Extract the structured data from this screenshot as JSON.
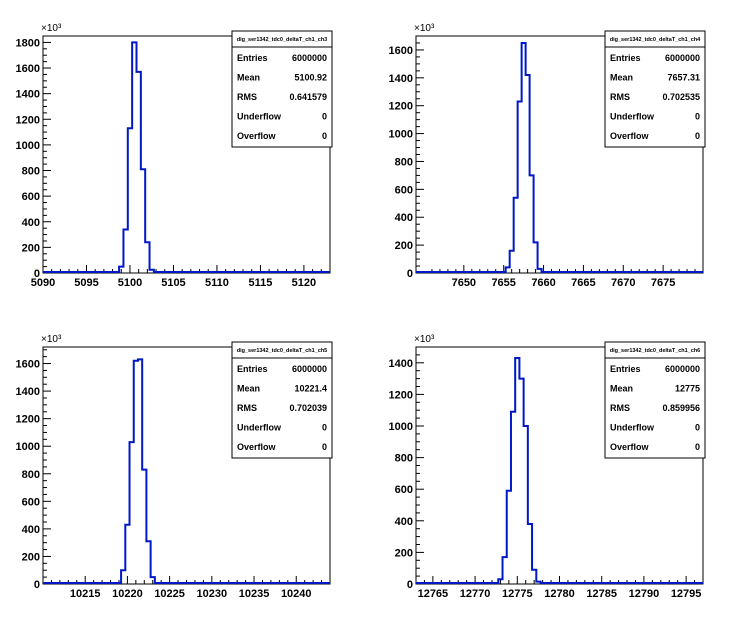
{
  "chart_data": [
    {
      "type": "histogram",
      "title": "dig_ser1342_tdc0_deltaT_ch1_ch3",
      "y_exponent_label": "×10³",
      "xlim": [
        5090,
        5123
      ],
      "ylim": [
        0,
        1850
      ],
      "xticks": [
        "5090",
        "5095",
        "5100",
        "5105",
        "5110",
        "5115",
        "5120"
      ],
      "yticks": [
        "0",
        "200",
        "400",
        "600",
        "800",
        "1000",
        "1200",
        "1400",
        "1600",
        "1800"
      ],
      "bin_width": 0.5,
      "bins": [
        {
          "x": 5098.5,
          "y": 3
        },
        {
          "x": 5099.0,
          "y": 50
        },
        {
          "x": 5099.5,
          "y": 340
        },
        {
          "x": 5100.0,
          "y": 1130
        },
        {
          "x": 5100.5,
          "y": 1800
        },
        {
          "x": 5101.0,
          "y": 1570
        },
        {
          "x": 5101.5,
          "y": 810
        },
        {
          "x": 5102.0,
          "y": 240
        },
        {
          "x": 5102.5,
          "y": 25
        },
        {
          "x": 5103.0,
          "y": 2
        }
      ],
      "stats": {
        "Entries": "6000000",
        "Mean": "5100.92",
        "RMS": "0.641579",
        "Underflow": "0",
        "Overflow": "0"
      }
    },
    {
      "type": "histogram",
      "title": "dig_ser1342_tdc0_deltaT_ch1_ch4",
      "y_exponent_label": "×10³",
      "xlim": [
        7644,
        7680
      ],
      "ylim": [
        0,
        1700
      ],
      "xticks": [
        "7650",
        "7655",
        "7660",
        "7665",
        "7670",
        "7675"
      ],
      "yticks": [
        "0",
        "200",
        "400",
        "600",
        "800",
        "1000",
        "1200",
        "1400",
        "1600"
      ],
      "bin_width": 0.5,
      "bins": [
        {
          "x": 7655.0,
          "y": 4
        },
        {
          "x": 7655.5,
          "y": 40
        },
        {
          "x": 7656.0,
          "y": 160
        },
        {
          "x": 7656.5,
          "y": 540
        },
        {
          "x": 7657.0,
          "y": 1230
        },
        {
          "x": 7657.5,
          "y": 1650
        },
        {
          "x": 7658.0,
          "y": 1420
        },
        {
          "x": 7658.5,
          "y": 700
        },
        {
          "x": 7659.0,
          "y": 220
        },
        {
          "x": 7659.5,
          "y": 30
        },
        {
          "x": 7660.0,
          "y": 3
        }
      ],
      "stats": {
        "Entries": "6000000",
        "Mean": "7657.31",
        "RMS": "0.702535",
        "Underflow": "0",
        "Overflow": "0"
      }
    },
    {
      "type": "histogram",
      "title": "dig_ser1342_tdc0_deltaT_ch1_ch5",
      "y_exponent_label": "×10³",
      "xlim": [
        10210,
        10244
      ],
      "ylim": [
        0,
        1720
      ],
      "xticks": [
        "10215",
        "10220",
        "10225",
        "10230",
        "10235",
        "10240"
      ],
      "yticks": [
        "0",
        "200",
        "400",
        "600",
        "800",
        "1000",
        "1200",
        "1400",
        "1600"
      ],
      "bin_width": 0.5,
      "bins": [
        {
          "x": 10219.0,
          "y": 4
        },
        {
          "x": 10219.5,
          "y": 100
        },
        {
          "x": 10220.0,
          "y": 430
        },
        {
          "x": 10220.5,
          "y": 1030
        },
        {
          "x": 10221.0,
          "y": 1620
        },
        {
          "x": 10221.5,
          "y": 1630
        },
        {
          "x": 10222.0,
          "y": 830
        },
        {
          "x": 10222.5,
          "y": 310
        },
        {
          "x": 10223.0,
          "y": 50
        },
        {
          "x": 10223.5,
          "y": 3
        }
      ],
      "stats": {
        "Entries": "6000000",
        "Mean": "10221.4",
        "RMS": "0.702039",
        "Underflow": "0",
        "Overflow": "0"
      }
    },
    {
      "type": "histogram",
      "title": "dig_ser1342_tdc0_deltaT_ch1_ch6",
      "y_exponent_label": "×10³",
      "xlim": [
        12763,
        12797
      ],
      "ylim": [
        0,
        1500
      ],
      "xticks": [
        "12765",
        "12770",
        "12775",
        "12780",
        "12785",
        "12790",
        "12795"
      ],
      "yticks": [
        "0",
        "200",
        "400",
        "600",
        "800",
        "1000",
        "1200",
        "1400"
      ],
      "bin_width": 0.5,
      "bins": [
        {
          "x": 12772.5,
          "y": 4
        },
        {
          "x": 12773.0,
          "y": 30
        },
        {
          "x": 12773.5,
          "y": 170
        },
        {
          "x": 12774.0,
          "y": 590
        },
        {
          "x": 12774.5,
          "y": 1090
        },
        {
          "x": 12775.0,
          "y": 1430
        },
        {
          "x": 12775.5,
          "y": 1300
        },
        {
          "x": 12776.0,
          "y": 1000
        },
        {
          "x": 12776.5,
          "y": 380
        },
        {
          "x": 12777.0,
          "y": 90
        },
        {
          "x": 12777.5,
          "y": 15
        },
        {
          "x": 12778.0,
          "y": 2
        }
      ],
      "stats": {
        "Entries": "6000000",
        "Mean": "12775",
        "RMS": "0.859956",
        "Underflow": "0",
        "Overflow": "0"
      }
    }
  ]
}
